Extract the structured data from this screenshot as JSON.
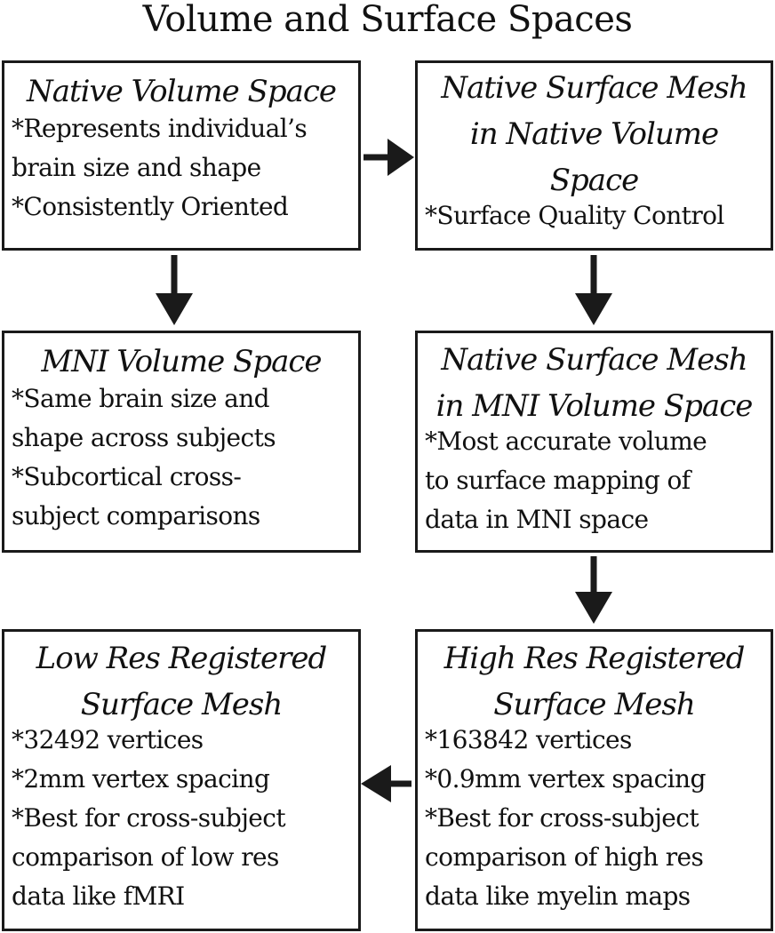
{
  "title": "Volume and Surface Spaces",
  "boxes": {
    "native_volume": {
      "title_lines": [
        "Native Volume Space"
      ],
      "lines": [
        "*Represents individual’s",
        "brain size and shape",
        "*Consistently Oriented"
      ]
    },
    "native_surface_native_volume": {
      "title_lines": [
        "Native Surface Mesh",
        "in Native Volume",
        "Space"
      ],
      "lines": [
        "*Surface Quality Control"
      ]
    },
    "mni_volume": {
      "title_lines": [
        "MNI Volume Space"
      ],
      "lines": [
        "*Same brain size and",
        "shape across subjects",
        "*Subcortical cross-",
        "subject comparisons"
      ]
    },
    "native_surface_mni_volume": {
      "title_lines": [
        "Native Surface Mesh",
        "in MNI Volume Space"
      ],
      "lines": [
        "*Most accurate volume",
        "to surface mapping of",
        "data in MNI space"
      ]
    },
    "low_res_registered": {
      "title_lines": [
        "Low Res Registered",
        "Surface Mesh"
      ],
      "lines": [
        "*32492 vertices",
        "*2mm vertex spacing",
        "*Best for cross-subject",
        "comparison of low res",
        "data like fMRI"
      ]
    },
    "high_res_registered": {
      "title_lines": [
        "High Res Registered",
        "Surface Mesh"
      ],
      "lines": [
        "*163842 vertices",
        "*0.9mm vertex spacing",
        "*Best for cross-subject",
        "comparison of high res",
        "data like myelin maps"
      ]
    }
  },
  "colors": {
    "border": "#1a1a1a",
    "arrow": "#1a1a1a",
    "text": "#111111"
  }
}
